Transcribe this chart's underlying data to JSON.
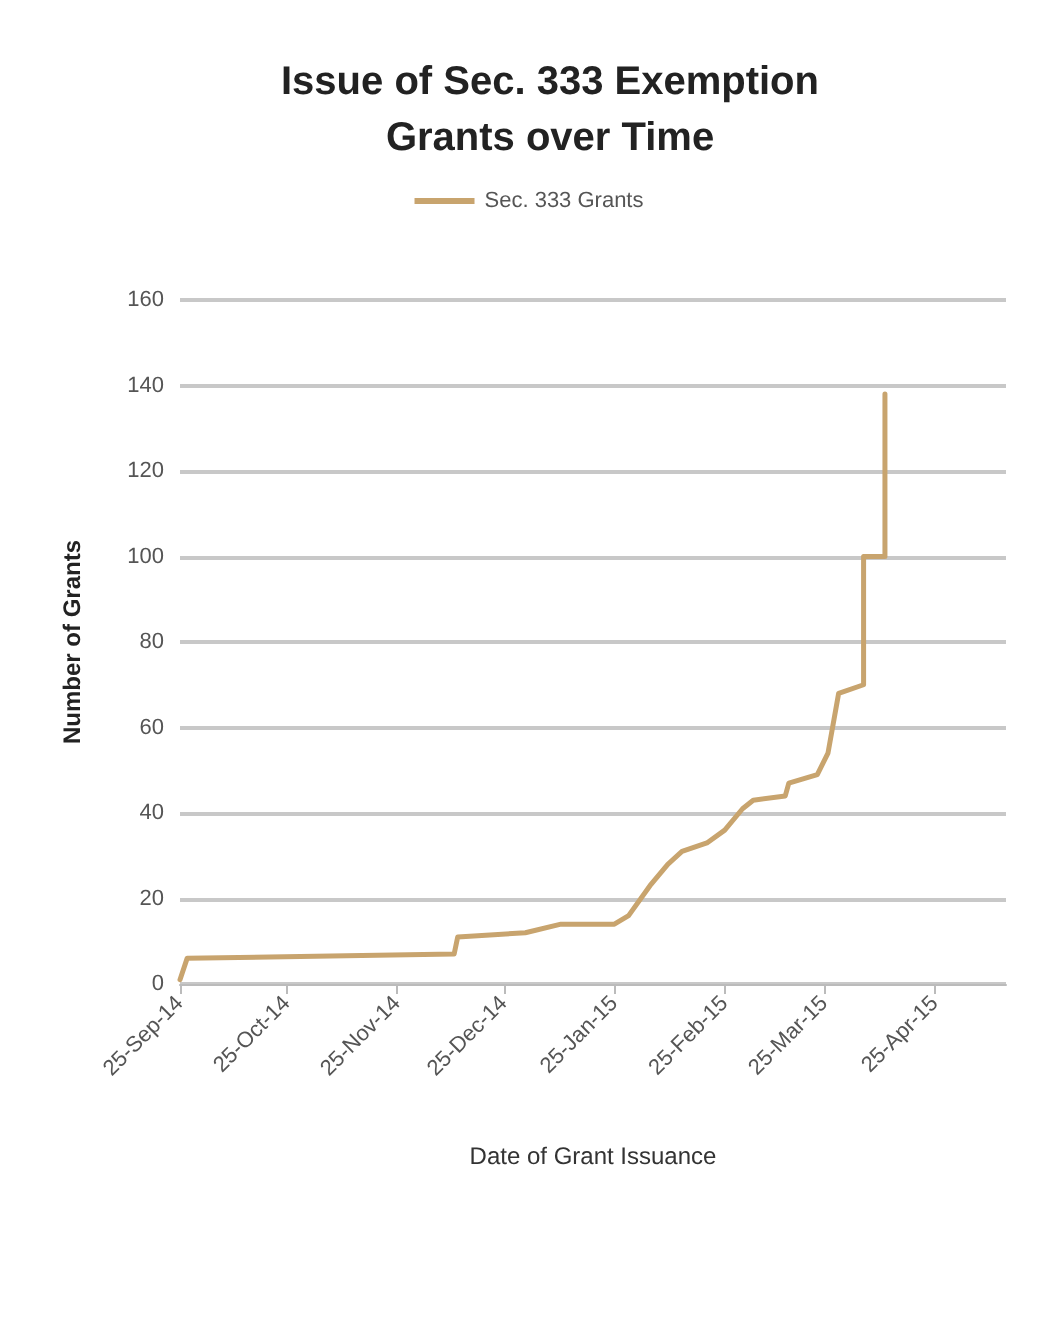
{
  "chart_data": {
    "type": "line",
    "title": "Issue of Sec. 333 Exemption\nGrants over Time",
    "xlabel": "Date of Grant Issuance",
    "ylabel": "Number of Grants",
    "series": [
      {
        "name": "Sec. 333 Grants",
        "color": "#c8a46e",
        "x": [
          "2014-09-25",
          "2014-09-27",
          "2014-12-11",
          "2014-12-12",
          "2014-12-31",
          "2015-01-10",
          "2015-01-25",
          "2015-01-29",
          "2015-02-04",
          "2015-02-09",
          "2015-02-13",
          "2015-02-20",
          "2015-02-25",
          "2015-03-02",
          "2015-03-05",
          "2015-03-14",
          "2015-03-15",
          "2015-03-23",
          "2015-03-26",
          "2015-03-29",
          "2015-04-05",
          "2015-04-05",
          "2015-04-11",
          "2015-04-11"
        ],
        "values": [
          1,
          6,
          7,
          11,
          12,
          14,
          14,
          16,
          23,
          28,
          31,
          33,
          36,
          41,
          43,
          44,
          47,
          49,
          54,
          68,
          70,
          100,
          100,
          138
        ]
      }
    ],
    "xlim": [
      "2014-09-25",
      "2015-05-15"
    ],
    "xticks": [
      {
        "value": "2014-09-25",
        "label": "25-Sep-14"
      },
      {
        "value": "2014-10-25",
        "label": "25-Oct-14"
      },
      {
        "value": "2014-11-25",
        "label": "25-Nov-14"
      },
      {
        "value": "2014-12-25",
        "label": "25-Dec-14"
      },
      {
        "value": "2015-01-25",
        "label": "25-Jan-15"
      },
      {
        "value": "2015-02-25",
        "label": "25-Feb-15"
      },
      {
        "value": "2015-03-25",
        "label": "25-Mar-15"
      },
      {
        "value": "2015-04-25",
        "label": "25-Apr-15"
      }
    ],
    "ylim": [
      0,
      160
    ],
    "yticks": [
      0,
      20,
      40,
      60,
      80,
      100,
      120,
      140,
      160
    ],
    "grid": "y",
    "legend": "top",
    "marker": "none",
    "line_style": "solid"
  }
}
